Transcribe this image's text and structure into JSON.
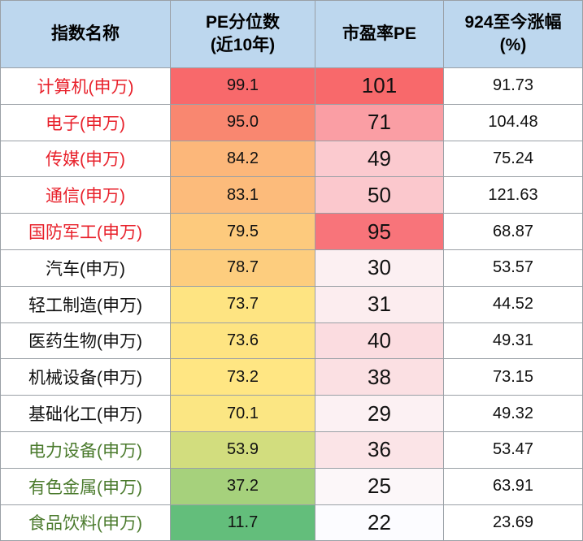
{
  "headers": {
    "name": "指数名称",
    "pct_line1": "PE分位数",
    "pct_line2": "(近10年)",
    "pe": "市盈率PE",
    "gain_line1": "924至今涨幅",
    "gain_line2": "(%)"
  },
  "colors": {
    "header_bg": "#bdd7ee",
    "name_red": "#e8212b",
    "name_black": "#111111",
    "name_green": "#4a7a2c"
  },
  "chart_data": {
    "type": "table",
    "columns": [
      "指数名称",
      "PE分位数(近10年)",
      "市盈率PE",
      "924至今涨幅(%)"
    ],
    "rows": [
      {
        "name": "计算机(申万)",
        "pe_percentile": "99.1",
        "pe": "101",
        "gain": "91.73",
        "name_color": "red",
        "pct_bg": "#f8696b",
        "pe_bg": "#f8696b"
      },
      {
        "name": "电子(申万)",
        "pe_percentile": "95.0",
        "pe": "71",
        "gain": "104.48",
        "name_color": "red",
        "pct_bg": "#f98770",
        "pe_bg": "#fa9ea4"
      },
      {
        "name": "传媒(申万)",
        "pe_percentile": "84.2",
        "pe": "49",
        "gain": "75.24",
        "name_color": "red",
        "pct_bg": "#fcb77a",
        "pe_bg": "#fbcacf"
      },
      {
        "name": "通信(申万)",
        "pe_percentile": "83.1",
        "pe": "50",
        "gain": "121.63",
        "name_color": "red",
        "pct_bg": "#fcbb7b",
        "pe_bg": "#fbc8cd"
      },
      {
        "name": "国防军工(申万)",
        "pe_percentile": "79.5",
        "pe": "95",
        "gain": "68.87",
        "name_color": "red",
        "pct_bg": "#fdca7d",
        "pe_bg": "#f8747a"
      },
      {
        "name": "汽车(申万)",
        "pe_percentile": "78.7",
        "pe": "30",
        "gain": "53.57",
        "name_color": "black",
        "pct_bg": "#fdcd7e",
        "pe_bg": "#fcf0f2"
      },
      {
        "name": "轻工制造(申万)",
        "pe_percentile": "73.7",
        "pe": "31",
        "gain": "44.52",
        "name_color": "black",
        "pct_bg": "#fee482",
        "pe_bg": "#fcedef"
      },
      {
        "name": "医药生物(申万)",
        "pe_percentile": "73.6",
        "pe": "40",
        "gain": "49.31",
        "name_color": "black",
        "pct_bg": "#fee482",
        "pe_bg": "#fbdce0"
      },
      {
        "name": "机械设备(申万)",
        "pe_percentile": "73.2",
        "pe": "38",
        "gain": "73.15",
        "name_color": "black",
        "pct_bg": "#ffe683",
        "pe_bg": "#fbe0e3"
      },
      {
        "name": "基础化工(申万)",
        "pe_percentile": "70.1",
        "pe": "29",
        "gain": "49.32",
        "name_color": "black",
        "pct_bg": "#fbe683",
        "pe_bg": "#fcf1f3"
      },
      {
        "name": "电力设备(申万)",
        "pe_percentile": "53.9",
        "pe": "36",
        "gain": "53.47",
        "name_color": "green",
        "pct_bg": "#d2dd7e",
        "pe_bg": "#fbe4e7"
      },
      {
        "name": "有色金属(申万)",
        "pe_percentile": "37.2",
        "pe": "25",
        "gain": "63.91",
        "name_color": "green",
        "pct_bg": "#a6d17c",
        "pe_bg": "#fcf7f9"
      },
      {
        "name": "食品饮料(申万)",
        "pe_percentile": "11.7",
        "pe": "22",
        "gain": "23.69",
        "name_color": "green",
        "pct_bg": "#63be7b",
        "pe_bg": "#fcfcff"
      }
    ]
  }
}
